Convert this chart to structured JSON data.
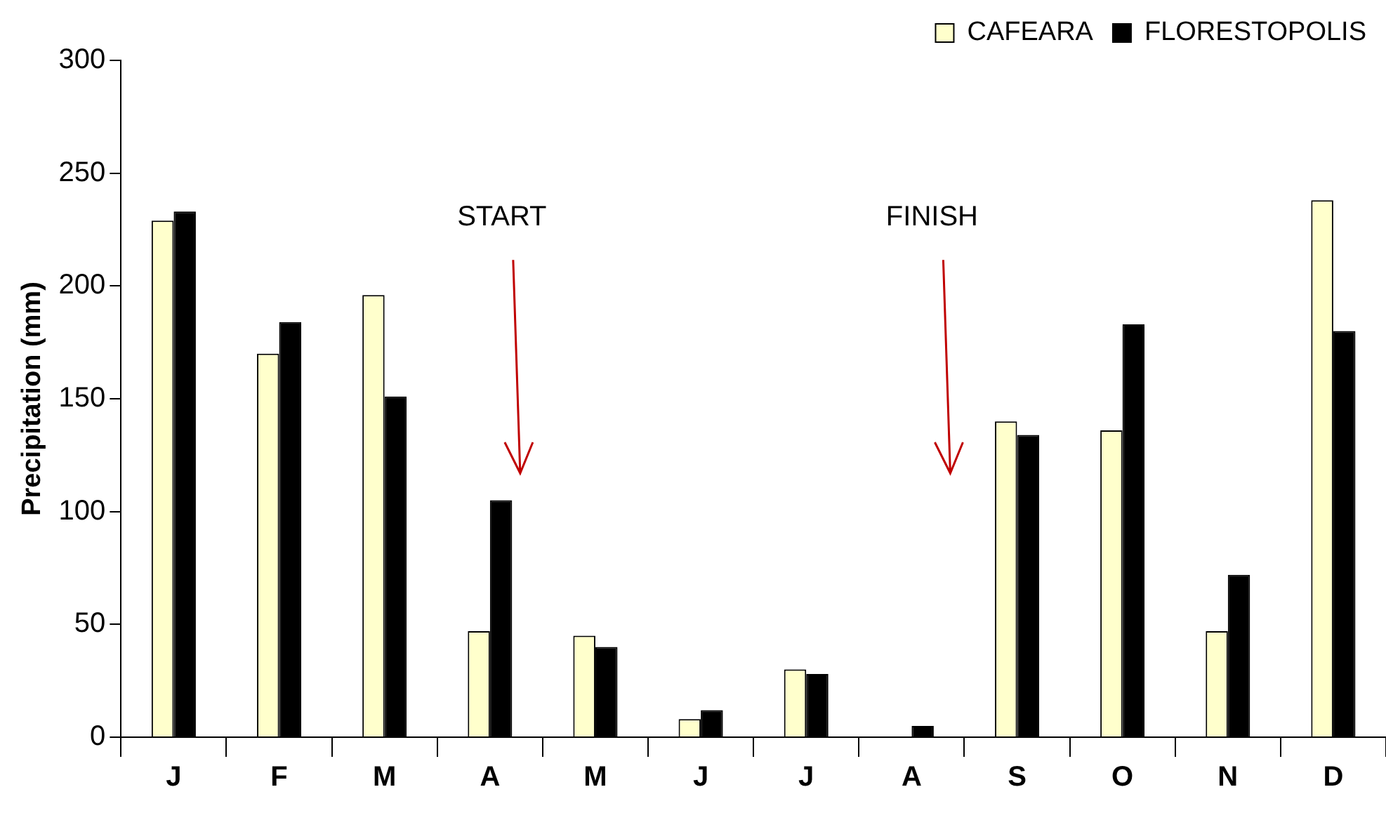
{
  "chart_data": {
    "type": "bar",
    "categories": [
      "J",
      "F",
      "M",
      "A",
      "M",
      "J",
      "J",
      "A",
      "S",
      "O",
      "N",
      "D"
    ],
    "series": [
      {
        "name": "CAFEARA",
        "color": "#ffffcc",
        "values": [
          229,
          170,
          196,
          47,
          45,
          8,
          30,
          0,
          140,
          136,
          47,
          238
        ]
      },
      {
        "name": "FLORESTOPOLIS",
        "color": "#000000",
        "values": [
          233,
          184,
          151,
          105,
          40,
          12,
          28,
          5,
          134,
          183,
          72,
          180
        ]
      }
    ],
    "ylabel": "Precipitation (mm)",
    "ylim": [
      0,
      300
    ],
    "yticks": [
      0,
      50,
      100,
      150,
      200,
      250,
      300
    ],
    "annotations": [
      "START",
      "FINISH"
    ],
    "grid": false,
    "legend": "top right"
  }
}
